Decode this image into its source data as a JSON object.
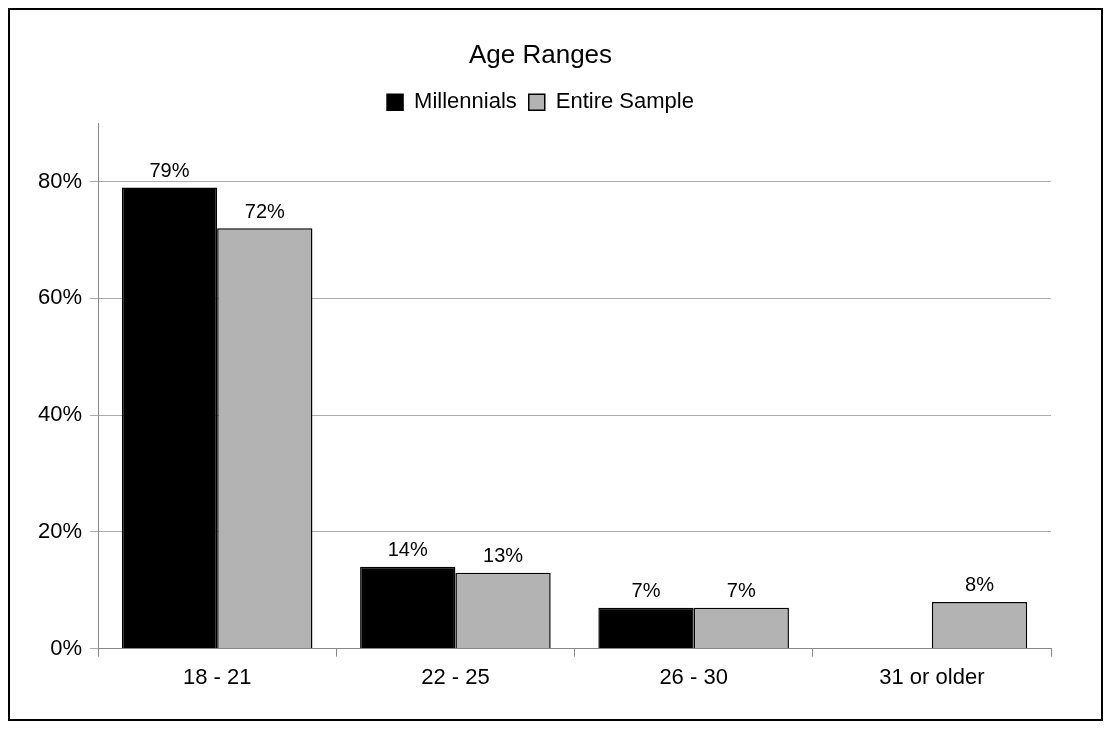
{
  "chart_data": {
    "type": "bar",
    "title": "Age Ranges",
    "categories": [
      "18 - 21",
      "22 - 25",
      "26 - 30",
      "31 or older"
    ],
    "series": [
      {
        "name": "Millennials",
        "color": "#000000",
        "values": [
          79,
          14,
          7,
          null
        ],
        "value_labels": [
          "79%",
          "14%",
          "7%",
          null
        ]
      },
      {
        "name": "Entire Sample",
        "color": "#b3b3b3",
        "values": [
          72,
          13,
          7,
          8
        ],
        "value_labels": [
          "72%",
          "13%",
          "7%",
          "8%"
        ]
      }
    ],
    "ylim": [
      0,
      90
    ],
    "yticks": [
      {
        "value": 0,
        "label": "0%"
      },
      {
        "value": 20,
        "label": "20%"
      },
      {
        "value": 40,
        "label": "40%"
      },
      {
        "value": 60,
        "label": "60%"
      },
      {
        "value": 80,
        "label": "80%"
      }
    ],
    "grid": "y",
    "legend": "top"
  }
}
